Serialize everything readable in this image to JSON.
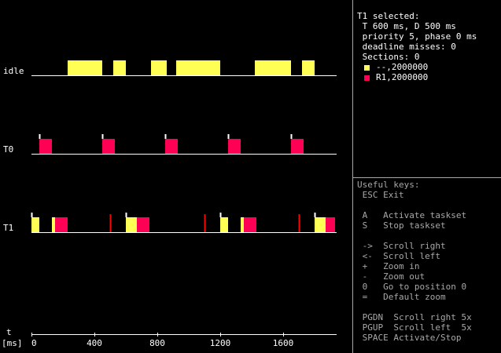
{
  "timeline": {
    "rows": [
      {
        "label": "idle",
        "jobs": [
          {
            "start": 230,
            "end": 450,
            "color": "#ffff54"
          },
          {
            "start": 520,
            "end": 600,
            "color": "#ffff54"
          },
          {
            "start": 760,
            "end": 860,
            "color": "#ffff54"
          },
          {
            "start": 920,
            "end": 1200,
            "color": "#ffff54"
          },
          {
            "start": 1420,
            "end": 1650,
            "color": "#ffff54"
          },
          {
            "start": 1720,
            "end": 1800,
            "color": "#ffff54"
          }
        ],
        "arrivals": [],
        "deadlines": []
      },
      {
        "label": "T0",
        "jobs": [
          {
            "start": 50,
            "end": 130,
            "color": "#ff0054"
          },
          {
            "start": 450,
            "end": 530,
            "color": "#ff0054"
          },
          {
            "start": 850,
            "end": 930,
            "color": "#ff0054"
          },
          {
            "start": 1250,
            "end": 1330,
            "color": "#ff0054"
          },
          {
            "start": 1650,
            "end": 1730,
            "color": "#ff0054"
          }
        ],
        "arrivals": [
          50,
          450,
          850,
          1250,
          1650
        ],
        "deadlines": []
      },
      {
        "label": "T1",
        "jobs": [
          {
            "start": 0,
            "end": 50,
            "color": "#ffff54"
          },
          {
            "start": 130,
            "end": 150,
            "color": "#ffff54"
          },
          {
            "start": 150,
            "end": 230,
            "color": "#ff0054"
          },
          {
            "start": 600,
            "end": 670,
            "color": "#ffff54"
          },
          {
            "start": 670,
            "end": 750,
            "color": "#ff0054"
          },
          {
            "start": 1200,
            "end": 1250,
            "color": "#ffff54"
          },
          {
            "start": 1330,
            "end": 1350,
            "color": "#ffff54"
          },
          {
            "start": 1350,
            "end": 1430,
            "color": "#ff0054"
          },
          {
            "start": 1800,
            "end": 1870,
            "color": "#ffff54"
          },
          {
            "start": 1870,
            "end": 1930,
            "color": "#ff0054"
          }
        ],
        "arrivals": [
          0,
          600,
          1200,
          1800
        ],
        "deadlines": [
          500,
          1100,
          1700
        ]
      }
    ],
    "time_label": "t",
    "unit_label": "[ms]",
    "ticks": [
      0,
      400,
      800,
      1200,
      1600
    ],
    "axis_max_ms": 1940,
    "deadline_color": "#ff0000",
    "arrival_color": "#ffffff"
  },
  "selected": {
    "lines": [
      "T1 selected:",
      " T 600 ms, D 500 ms",
      " priority 5, phase 0 ms",
      " deadline misses: 0",
      " Sections: 0"
    ],
    "sections": [
      {
        "color": "#ffff54",
        "label": "--,2000000"
      },
      {
        "color": "#ff0054",
        "label": "R1,2000000"
      }
    ]
  },
  "keys": {
    "title": "Useful keys:",
    "lines": [
      " ESC Exit",
      "",
      " A   Activate taskset",
      " S   Stop taskset",
      "",
      " ->  Scroll right",
      " <-  Scroll left",
      " +   Zoom in",
      " -   Zoom out",
      " 0   Go to position 0",
      " =   Default zoom",
      "",
      " PGDN  Scroll right 5x",
      " PGUP  Scroll left  5x",
      " SPACE Activate/Stop"
    ]
  }
}
